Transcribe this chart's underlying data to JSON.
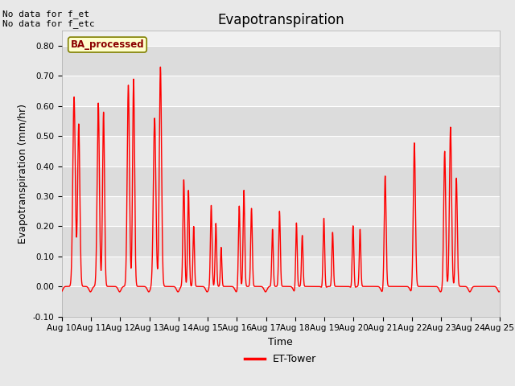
{
  "title": "Evapotranspiration",
  "ylabel": "Evapotranspiration (mm/hr)",
  "xlabel": "Time",
  "ylim": [
    -0.1,
    0.85
  ],
  "yticks": [
    -0.1,
    0.0,
    0.1,
    0.2,
    0.3,
    0.4,
    0.5,
    0.6,
    0.7,
    0.8
  ],
  "ytick_labels": [
    "-0.10",
    "0.00",
    "0.10",
    "0.20",
    "0.30",
    "0.40",
    "0.50",
    "0.60",
    "0.70",
    "0.80"
  ],
  "line_color": "red",
  "line_width": 1.0,
  "fig_bg_color": "#e8e8e8",
  "plot_bg_color": "#f0f0f0",
  "annotation_top_left": "No data for f_et\nNo data for f_etc",
  "annotation_fontsize": 8,
  "inset_label": "BA_processed",
  "legend_label": "ET-Tower",
  "legend_color": "red",
  "title_fontsize": 12,
  "axis_label_fontsize": 9,
  "tick_fontsize": 7.5,
  "x_tick_labels": [
    "Aug 10",
    "Aug 11",
    "Aug 12",
    "Aug 13",
    "Aug 14",
    "Aug 15",
    "Aug 16",
    "Aug 17",
    "Aug 18",
    "Aug 19",
    "Aug 20",
    "Aug 21",
    "Aug 22",
    "Aug 23",
    "Aug 24",
    "Aug 25"
  ],
  "peak_data": [
    [
      0.42,
      0.63,
      0.1
    ],
    [
      0.58,
      0.54,
      0.09
    ],
    [
      1.25,
      0.61,
      0.09
    ],
    [
      1.43,
      0.58,
      0.08
    ],
    [
      2.28,
      0.67,
      0.09
    ],
    [
      2.46,
      0.69,
      0.08
    ],
    [
      3.18,
      0.56,
      0.1
    ],
    [
      3.38,
      0.73,
      0.09
    ],
    [
      4.18,
      0.355,
      0.07
    ],
    [
      4.34,
      0.32,
      0.065
    ],
    [
      4.52,
      0.2,
      0.06
    ],
    [
      5.12,
      0.27,
      0.065
    ],
    [
      5.28,
      0.21,
      0.06
    ],
    [
      5.46,
      0.13,
      0.055
    ],
    [
      6.08,
      0.27,
      0.065
    ],
    [
      6.24,
      0.32,
      0.065
    ],
    [
      6.5,
      0.26,
      0.065
    ],
    [
      7.22,
      0.19,
      0.06
    ],
    [
      7.46,
      0.25,
      0.065
    ],
    [
      8.04,
      0.22,
      0.06
    ],
    [
      8.24,
      0.17,
      0.06
    ],
    [
      8.98,
      0.245,
      0.065
    ],
    [
      9.28,
      0.18,
      0.06
    ],
    [
      9.98,
      0.22,
      0.065
    ],
    [
      10.22,
      0.19,
      0.06
    ],
    [
      11.08,
      0.37,
      0.075
    ],
    [
      12.08,
      0.48,
      0.085
    ],
    [
      13.12,
      0.45,
      0.08
    ],
    [
      13.32,
      0.53,
      0.085
    ],
    [
      13.52,
      0.36,
      0.075
    ]
  ]
}
